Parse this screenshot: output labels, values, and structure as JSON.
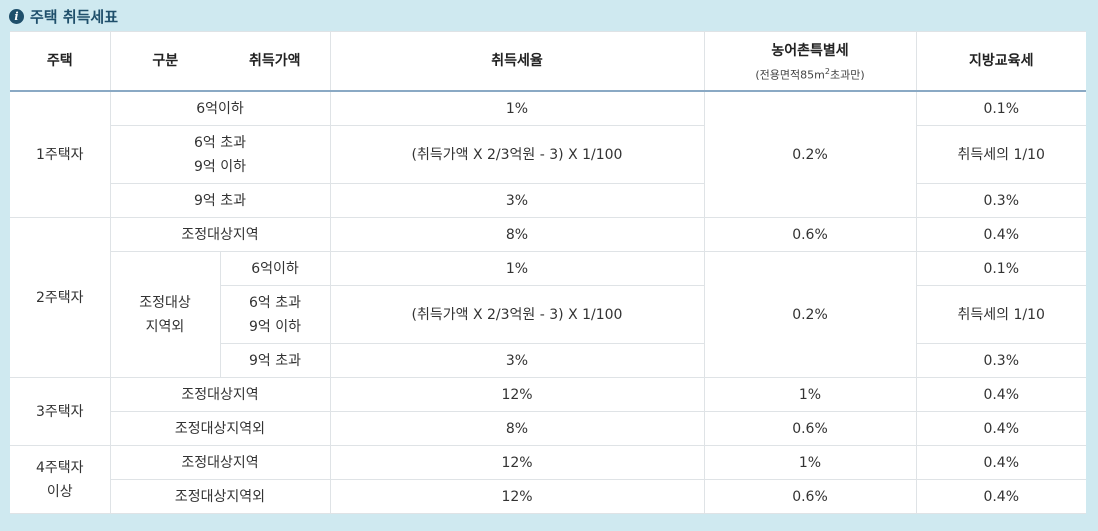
{
  "title": "주택 취득세표",
  "icon": "info-icon",
  "headers": {
    "house": "주택",
    "category": "구분",
    "price": "취득가액",
    "rate": "취득세율",
    "rural": "농어촌특별세",
    "rural_note_prefix": "(전용면적85m",
    "rural_note_sup": "2",
    "rural_note_suffix": "초과만)",
    "edu": "지방교육세"
  },
  "rows": {
    "h1": "1주택자",
    "h1_r1_cat": "6억이하",
    "h1_r1_rate": "1%",
    "h1_rural": "0.2%",
    "h1_r1_edu": "0.1%",
    "h1_r2_cat": "6억 초과\n9억 이하",
    "h1_r2_rate": "(취득가액 X 2/3억원 - 3) X 1/100",
    "h1_r2_edu": "취득세의 1/10",
    "h1_r3_cat": "9억 초과",
    "h1_r3_rate": "3%",
    "h1_r3_edu": "0.3%",
    "h2": "2주택자",
    "h2_r1_cat": "조정대상지역",
    "h2_r1_rate": "8%",
    "h2_r1_rural": "0.6%",
    "h2_r1_edu": "0.4%",
    "h2_out": "조정대상\n지역외",
    "h2_r2_price": "6억이하",
    "h2_r2_rate": "1%",
    "h2_rural": "0.2%",
    "h2_r2_edu": "0.1%",
    "h2_r3_price": "6억 초과\n9억 이하",
    "h2_r3_rate": "(취득가액 X 2/3억원 - 3) X 1/100",
    "h2_r3_edu": "취득세의 1/10",
    "h2_r4_price": "9억 초과",
    "h2_r4_rate": "3%",
    "h2_r4_edu": "0.3%",
    "h3": "3주택자",
    "h3_r1_cat": "조정대상지역",
    "h3_r1_rate": "12%",
    "h3_r1_rural": "1%",
    "h3_r1_edu": "0.4%",
    "h3_r2_cat": "조정대상지역외",
    "h3_r2_rate": "8%",
    "h3_r2_rural": "0.6%",
    "h3_r2_edu": "0.4%",
    "h4": "4주택자\n이상",
    "h4_r1_cat": "조정대상지역",
    "h4_r1_rate": "12%",
    "h4_r1_rural": "1%",
    "h4_r1_edu": "0.4%",
    "h4_r2_cat": "조정대상지역외",
    "h4_r2_rate": "12%",
    "h4_r2_rural": "0.6%",
    "h4_r2_edu": "0.4%"
  }
}
